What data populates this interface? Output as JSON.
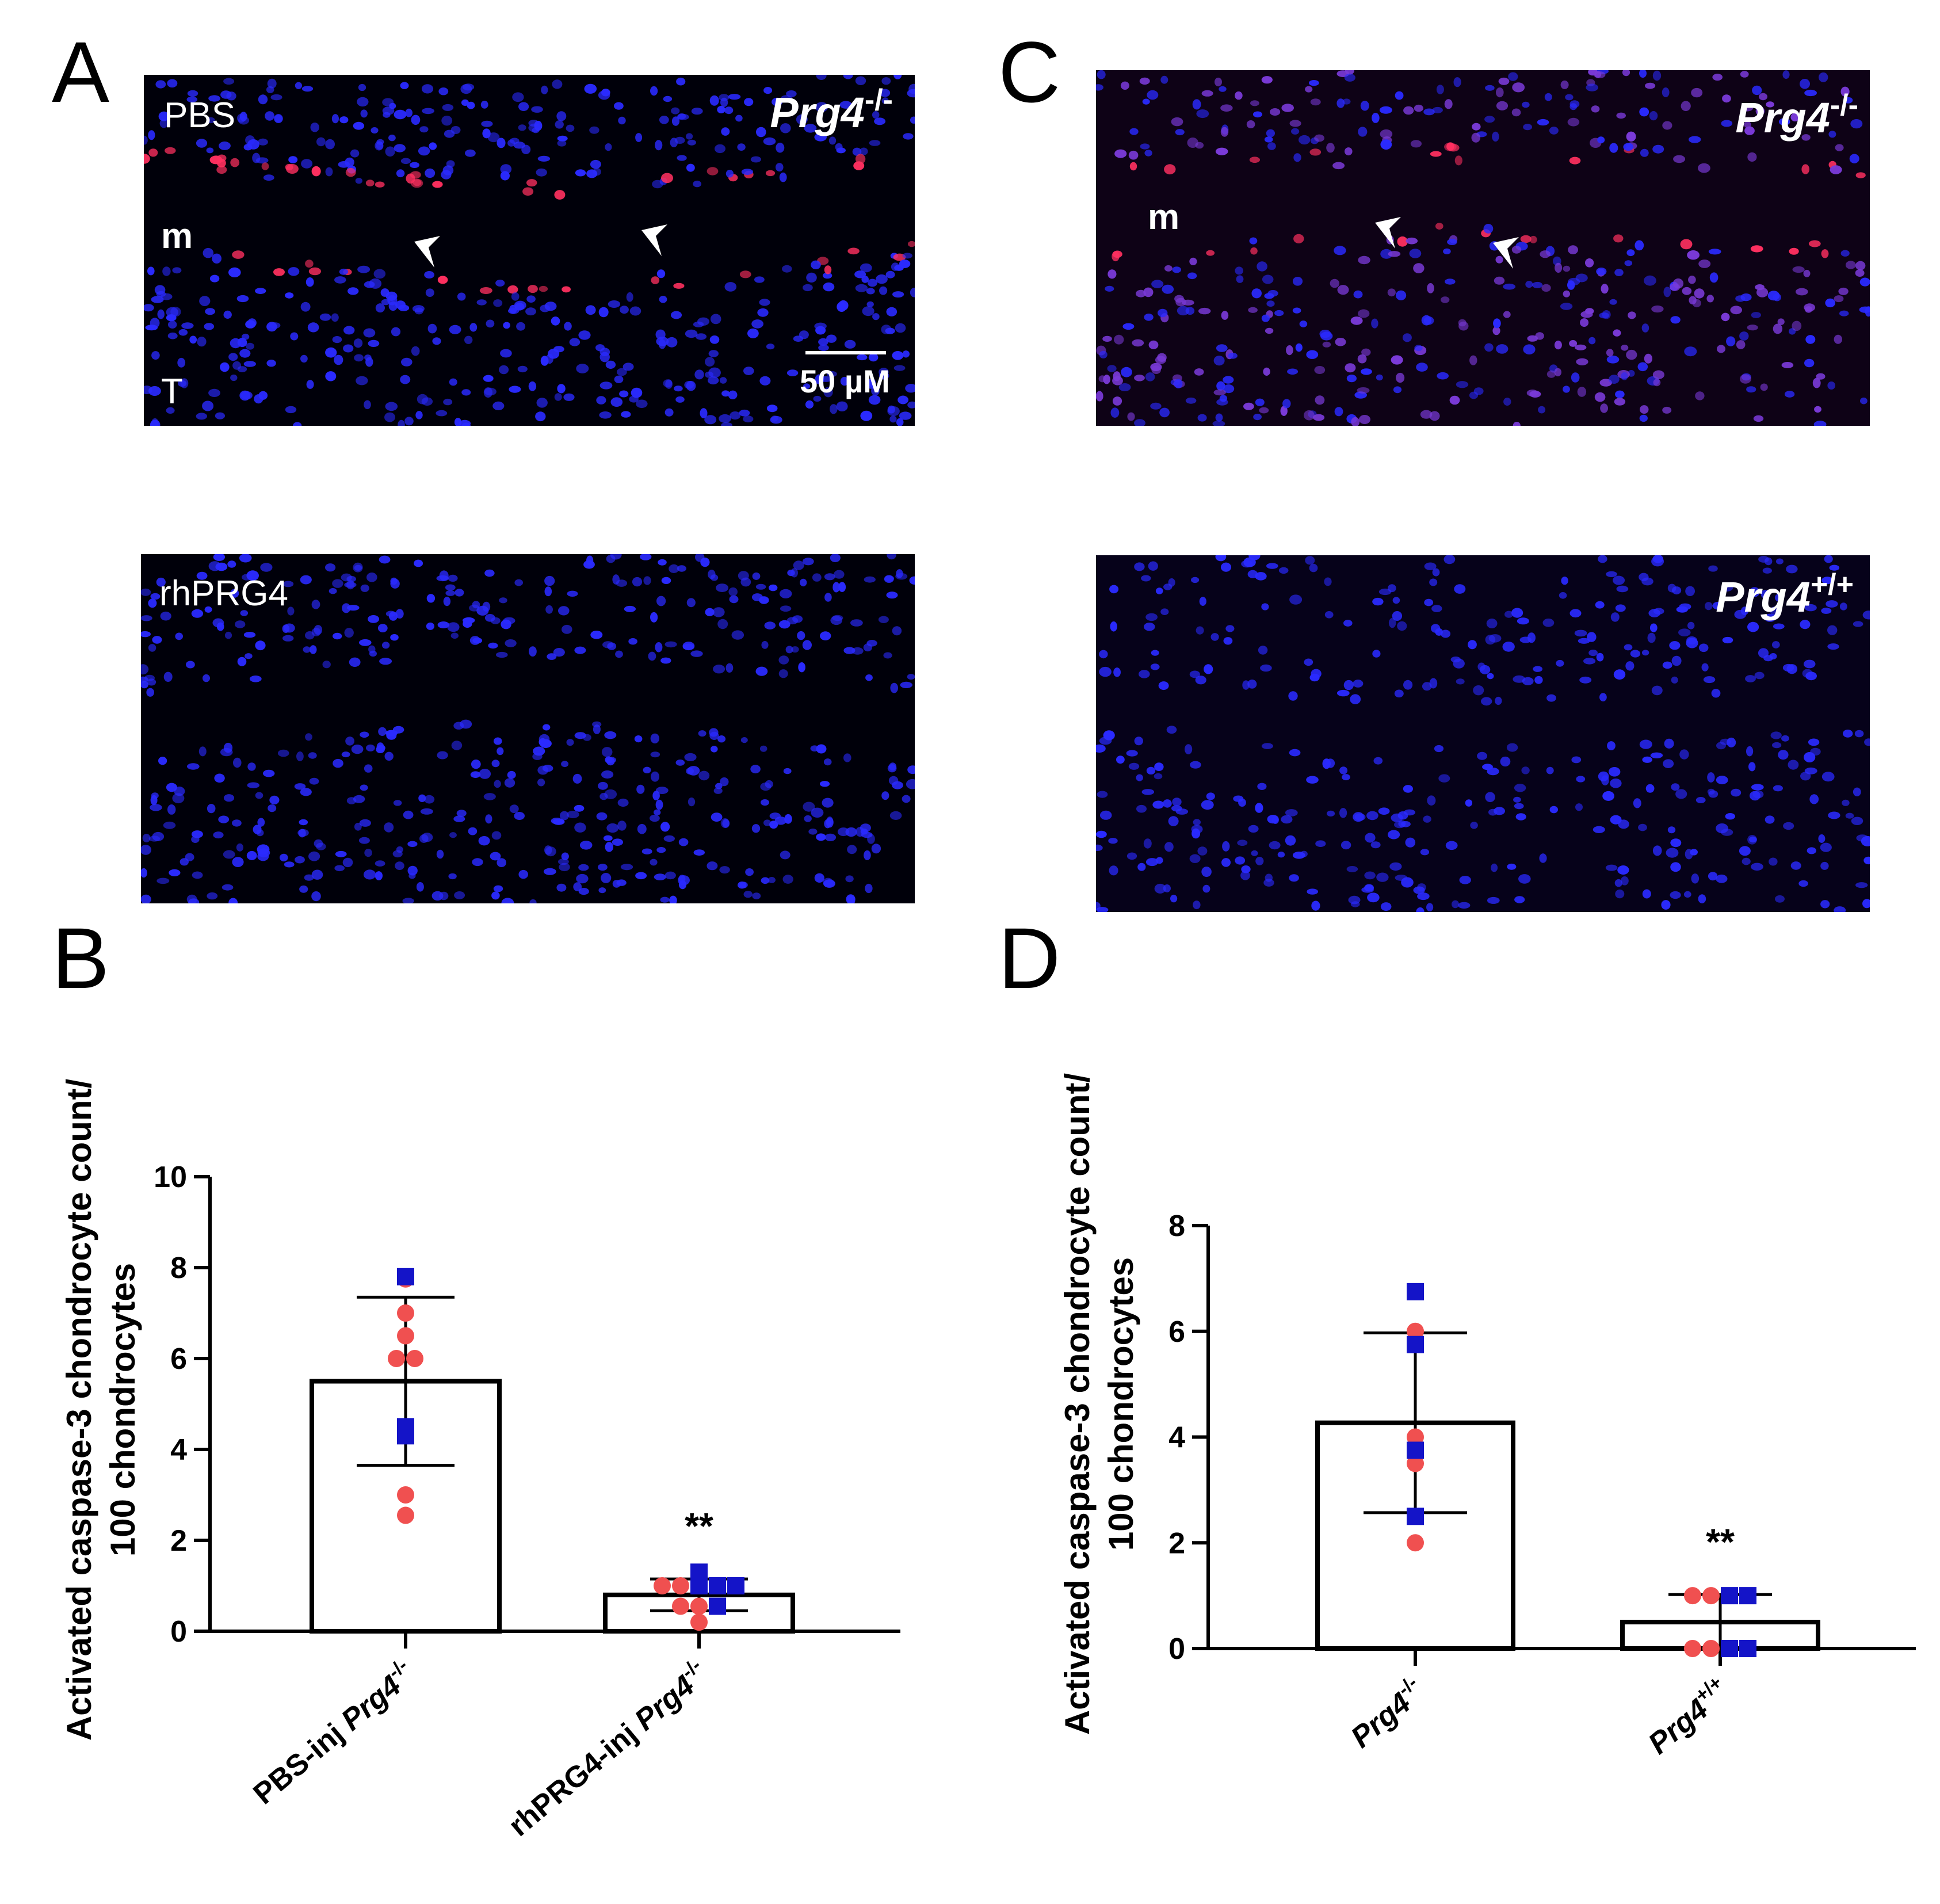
{
  "panels": {
    "A": {
      "letter": "A",
      "top_label": "PBS",
      "genotype": "Prg4",
      "genotype_sup": "-/-",
      "marker_m": "m",
      "marker_t": "T",
      "scale_bar": "50 µM",
      "bottom_label": "rhPRG4"
    },
    "B": {
      "letter": "B"
    },
    "C": {
      "letter": "C",
      "top_genotype": "Prg4",
      "top_genotype_sup": "-/-",
      "marker_m": "m",
      "bottom_genotype": "Prg4",
      "bottom_genotype_sup": "+/+"
    },
    "D": {
      "letter": "D"
    }
  },
  "chart_data": [
    {
      "panel": "B",
      "type": "bar",
      "ylabel_line1": "Activated caspase-3 chondrocyte count/",
      "ylabel_line2": "100 chondrocytes",
      "ylim": [
        0,
        10
      ],
      "yticks": [
        "0",
        "2",
        "4",
        "6",
        "8",
        "10"
      ],
      "categories": [
        {
          "prefix": "PBS-inj ",
          "name": "Prg4",
          "sup": "-/-"
        },
        {
          "prefix": "rhPRG4-inj ",
          "name": "Prg4",
          "sup": "-/-"
        }
      ],
      "means": [
        5.5,
        0.8
      ],
      "sd": [
        1.85,
        0.35
      ],
      "significance": [
        "",
        "**"
      ],
      "points": [
        {
          "red": [
            7.75,
            7.0,
            6.5,
            6.0,
            6.0,
            3.0,
            2.55
          ],
          "blue": [
            7.8,
            4.5,
            4.3
          ]
        },
        {
          "red": [
            1.0,
            1.0,
            0.55,
            0.55,
            0.2
          ],
          "blue": [
            1.3,
            1.0,
            1.0,
            1.0,
            0.55
          ]
        }
      ]
    },
    {
      "panel": "D",
      "type": "bar",
      "ylabel_line1": "Activated caspase-3 chondrocyte count/",
      "ylabel_line2": "100 chondrocytes",
      "ylim": [
        0,
        8
      ],
      "yticks": [
        "0",
        "2",
        "4",
        "6",
        "8"
      ],
      "categories": [
        {
          "prefix": "",
          "name": "Prg4",
          "sup": "-/-"
        },
        {
          "prefix": "",
          "name": "Prg4",
          "sup": "+/+"
        }
      ],
      "means": [
        4.27,
        0.5
      ],
      "sd": [
        1.7,
        0.52
      ],
      "significance": [
        "",
        "**"
      ],
      "points": [
        {
          "red": [
            6.0,
            4.0,
            3.5,
            2.0
          ],
          "blue": [
            6.75,
            5.75,
            3.75,
            2.5
          ]
        },
        {
          "red": [
            1.0,
            1.0,
            0.0,
            0.0
          ],
          "blue": [
            1.0,
            1.0,
            0.0,
            0.0
          ]
        }
      ]
    }
  ],
  "colors": {
    "red_point": "#f05050",
    "blue_point": "#1414c8",
    "nuclei": "#2a2aff",
    "stain": "#ff3060"
  }
}
